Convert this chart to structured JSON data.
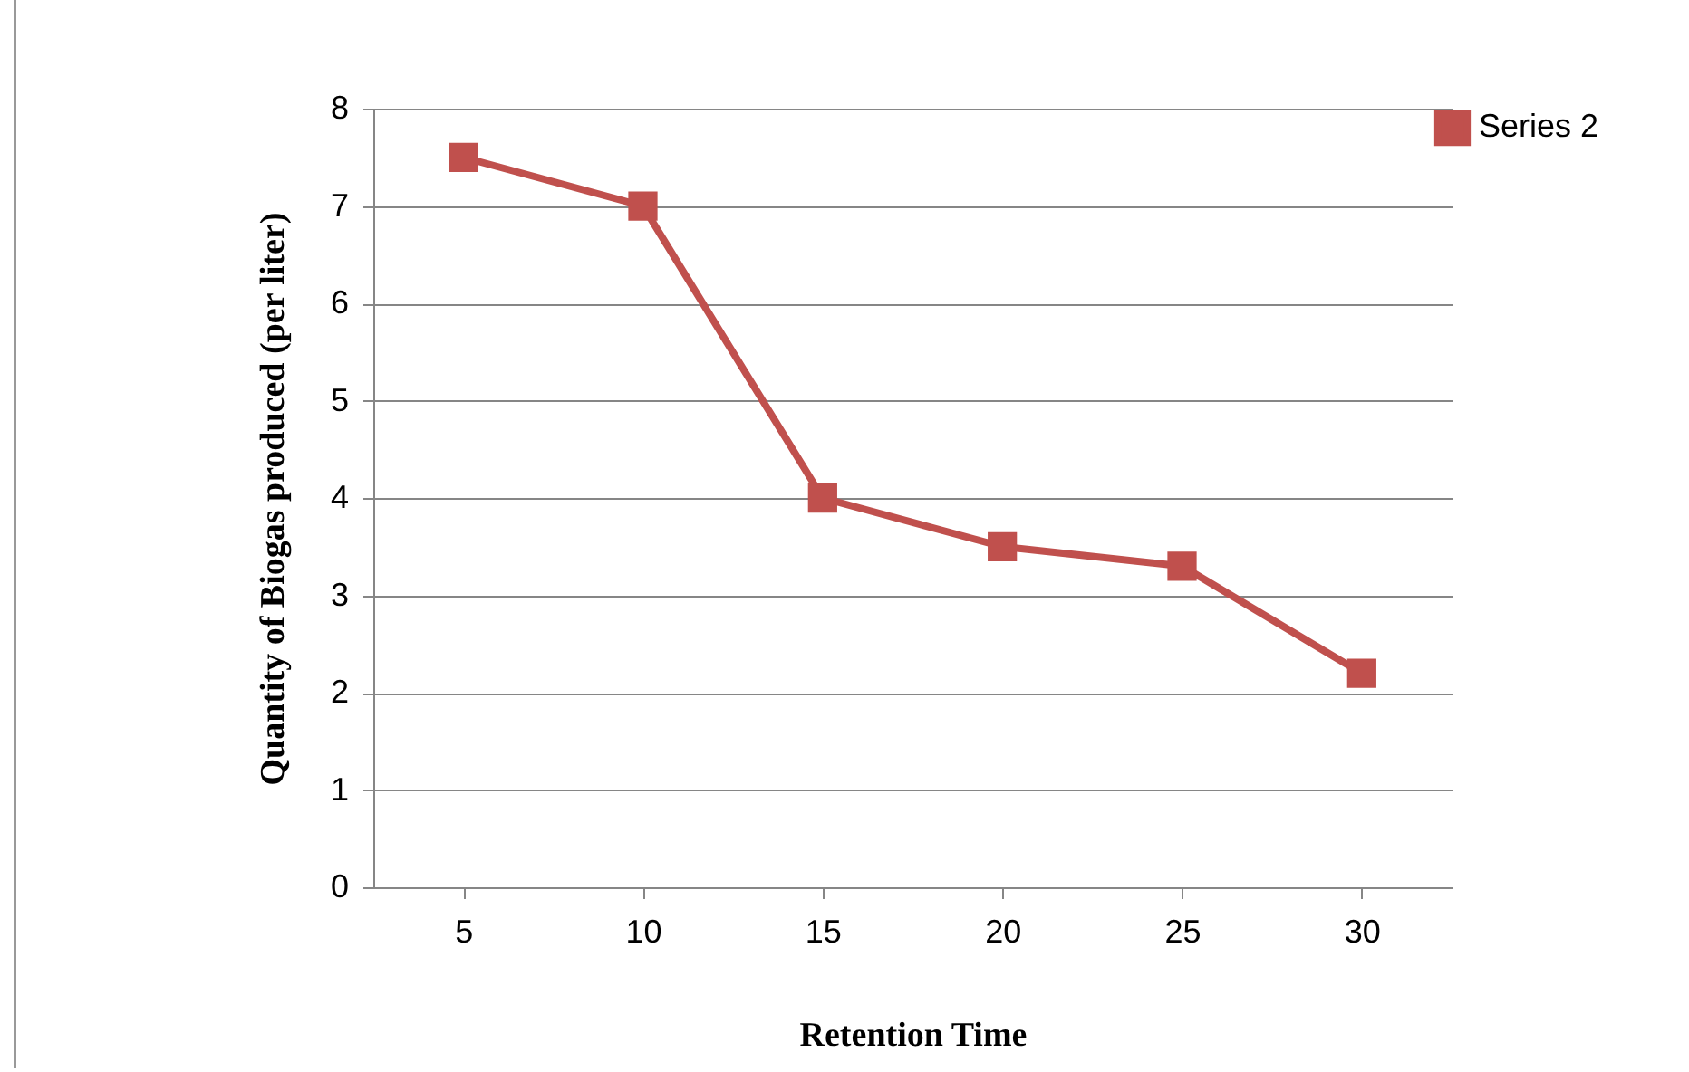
{
  "chart_data": {
    "type": "line",
    "xlabel": "Retention Time",
    "ylabel": "Quantity of  Biogas produced  (per liter)",
    "categories": [
      "5",
      "10",
      "15",
      "20",
      "25",
      "30"
    ],
    "series": [
      {
        "name": "Series 2",
        "color": "#c0504d",
        "values": [
          7.5,
          7,
          4,
          3.5,
          3.3,
          2.2
        ]
      }
    ],
    "ylim": [
      0,
      8
    ],
    "yticks": [
      0,
      1,
      2,
      3,
      4,
      5,
      6,
      7,
      8
    ],
    "grid": "y",
    "legend": "right",
    "marker": "square",
    "line_style": "solid"
  }
}
